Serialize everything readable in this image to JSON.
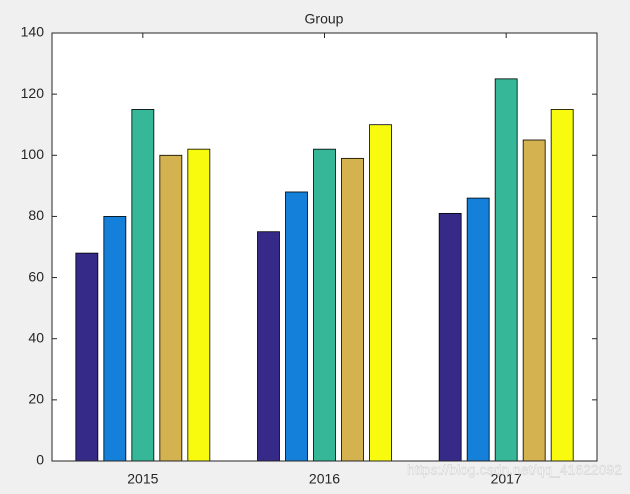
{
  "chart_data": {
    "type": "bar",
    "title": "Group",
    "categories": [
      "2015",
      "2016",
      "2017"
    ],
    "series": [
      {
        "color": "#352a87",
        "values": [
          68,
          75,
          81
        ]
      },
      {
        "color": "#1580d9",
        "values": [
          80,
          88,
          86
        ]
      },
      {
        "color": "#35b798",
        "values": [
          115,
          102,
          125
        ]
      },
      {
        "color": "#d4b24f",
        "values": [
          100,
          99,
          105
        ]
      },
      {
        "color": "#f9fb0e",
        "values": [
          102,
          110,
          115
        ]
      }
    ],
    "ylim": [
      0,
      140
    ],
    "yticks": [
      0,
      20,
      40,
      60,
      80,
      100,
      120,
      140
    ],
    "grid": false,
    "watermark": "https://blog.csdn.net/qq_41622092"
  }
}
